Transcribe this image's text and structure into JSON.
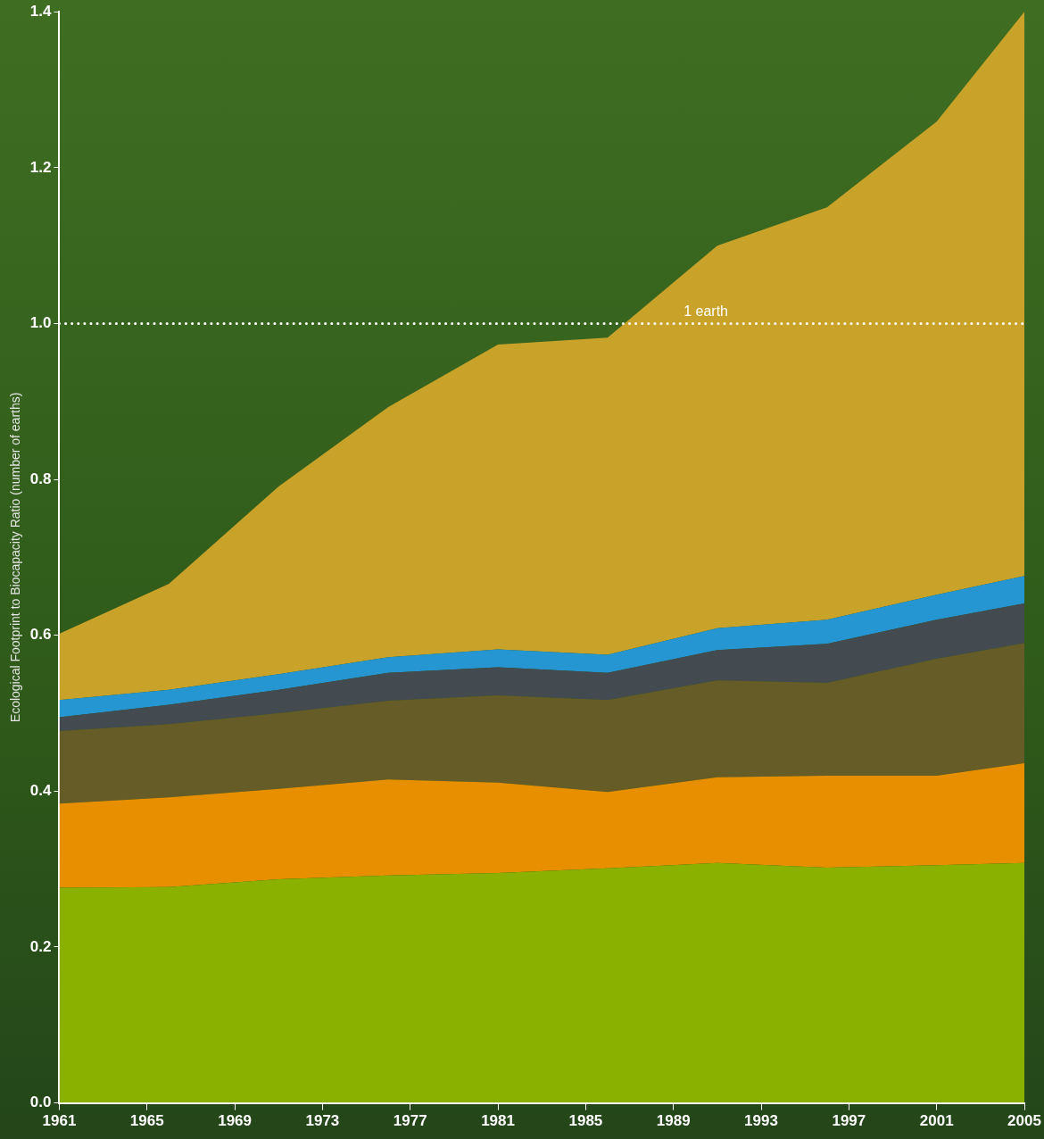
{
  "chart_data": {
    "type": "area",
    "stacked": true,
    "y_label": "Ecological Footprint to Biocapacity Ratio (number of earths)",
    "x": [
      1961,
      1966,
      1971,
      1976,
      1981,
      1986,
      1991,
      1996,
      2001,
      2005
    ],
    "xlim": [
      1961,
      2005
    ],
    "xticks": [
      1961,
      1965,
      1969,
      1973,
      1977,
      1981,
      1985,
      1989,
      1993,
      1997,
      2001,
      2005
    ],
    "ylim": [
      0,
      1.4
    ],
    "yticks": [
      {
        "value": 0,
        "label": "0.0"
      },
      {
        "value": 0.2,
        "label": "0.2"
      },
      {
        "value": 0.4,
        "label": "0.4"
      },
      {
        "value": 0.6,
        "label": "0.6"
      },
      {
        "value": 0.8,
        "label": "0.8"
      },
      {
        "value": 1,
        "label": "1.0"
      },
      {
        "value": 1.2,
        "label": "1.2"
      },
      {
        "value": 1.4,
        "label": "1.4"
      }
    ],
    "grid": false,
    "series": [
      {
        "color": "#8ab000",
        "values": [
          0.276,
          0.277,
          0.287,
          0.292,
          0.295,
          0.301,
          0.308,
          0.302,
          0.305,
          0.308
        ]
      },
      {
        "color": "#e88f00",
        "values": [
          0.108,
          0.115,
          0.116,
          0.123,
          0.116,
          0.098,
          0.11,
          0.118,
          0.115,
          0.128
        ]
      },
      {
        "color": "#665c28",
        "values": [
          0.093,
          0.094,
          0.097,
          0.101,
          0.112,
          0.118,
          0.124,
          0.119,
          0.15,
          0.154
        ]
      },
      {
        "color": "#434b50",
        "values": [
          0.018,
          0.025,
          0.03,
          0.036,
          0.036,
          0.035,
          0.039,
          0.05,
          0.05,
          0.051
        ]
      },
      {
        "color": "#2596d2",
        "values": [
          0.022,
          0.019,
          0.02,
          0.02,
          0.023,
          0.023,
          0.028,
          0.031,
          0.032,
          0.035
        ]
      },
      {
        "color": "#c9a22a",
        "values": [
          0.085,
          0.136,
          0.241,
          0.321,
          0.391,
          0.407,
          0.491,
          0.529,
          0.607,
          0.724
        ]
      }
    ],
    "annotations": [
      {
        "y": 1.0,
        "text": "1 earth",
        "line_style": "dotted"
      }
    ]
  }
}
